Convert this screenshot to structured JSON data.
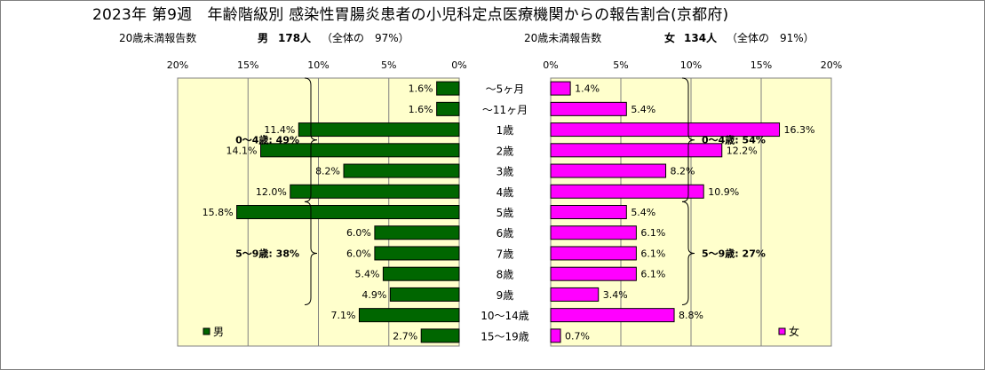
{
  "title": "2023年 第9週　年齢階級別 感染性胃腸炎患者の小児科定点医療機関からの報告割合(京都府)",
  "male_summary": {
    "label": "20歳未満報告数",
    "sex": "男",
    "count_text": "178人",
    "share_text": "（全体の　97%）"
  },
  "female_summary": {
    "label": "20歳未満報告数",
    "sex": "女",
    "count_text": "134人",
    "share_text": "（全体の　91%）"
  },
  "chart_data": {
    "type": "bar",
    "orientation": "horizontal",
    "layout": "population-pyramid",
    "categories": [
      "～5ヶ月",
      "～11ヶ月",
      "1歳",
      "2歳",
      "3歳",
      "4歳",
      "5歳",
      "6歳",
      "7歳",
      "8歳",
      "9歳",
      "10～14歳",
      "15～19歳"
    ],
    "series": [
      {
        "name": "男",
        "color": "#006600",
        "values": [
          1.6,
          1.6,
          11.4,
          14.1,
          8.2,
          12.0,
          15.8,
          6.0,
          6.0,
          5.4,
          4.9,
          7.1,
          2.7
        ],
        "labels": [
          "1.6%",
          "1.6%",
          "11.4%",
          "14.1%",
          "8.2%",
          "12.0%",
          "15.8%",
          "6.0%",
          "6.0%",
          "5.4%",
          "4.9%",
          "7.1%",
          "2.7%"
        ]
      },
      {
        "name": "女",
        "color": "#ff00ff",
        "values": [
          1.4,
          5.4,
          16.3,
          12.2,
          8.2,
          10.9,
          5.4,
          6.1,
          6.1,
          6.1,
          3.4,
          8.8,
          0.7
        ],
        "labels": [
          "1.4%",
          "5.4%",
          "16.3%",
          "12.2%",
          "8.2%",
          "10.9%",
          "5.4%",
          "6.1%",
          "6.1%",
          "6.1%",
          "3.4%",
          "8.8%",
          "0.7%"
        ]
      }
    ],
    "male_ticks": [
      "20%",
      "15%",
      "10%",
      "5%",
      "0%"
    ],
    "female_ticks": [
      "0%",
      "5%",
      "10%",
      "15%",
      "20%"
    ],
    "xlim": [
      0,
      20
    ],
    "grid": true,
    "legend_placement": "bottom-left (男), bottom-right (女)",
    "annotations": {
      "male": [
        {
          "text": "0～4歳: 49%",
          "from": 0,
          "to": 5
        },
        {
          "text": "5～9歳: 38%",
          "from": 6,
          "to": 10
        }
      ],
      "female": [
        {
          "text": "0～4歳: 54%",
          "from": 0,
          "to": 5
        },
        {
          "text": "5～9歳: 27%",
          "from": 6,
          "to": 10
        }
      ]
    }
  }
}
